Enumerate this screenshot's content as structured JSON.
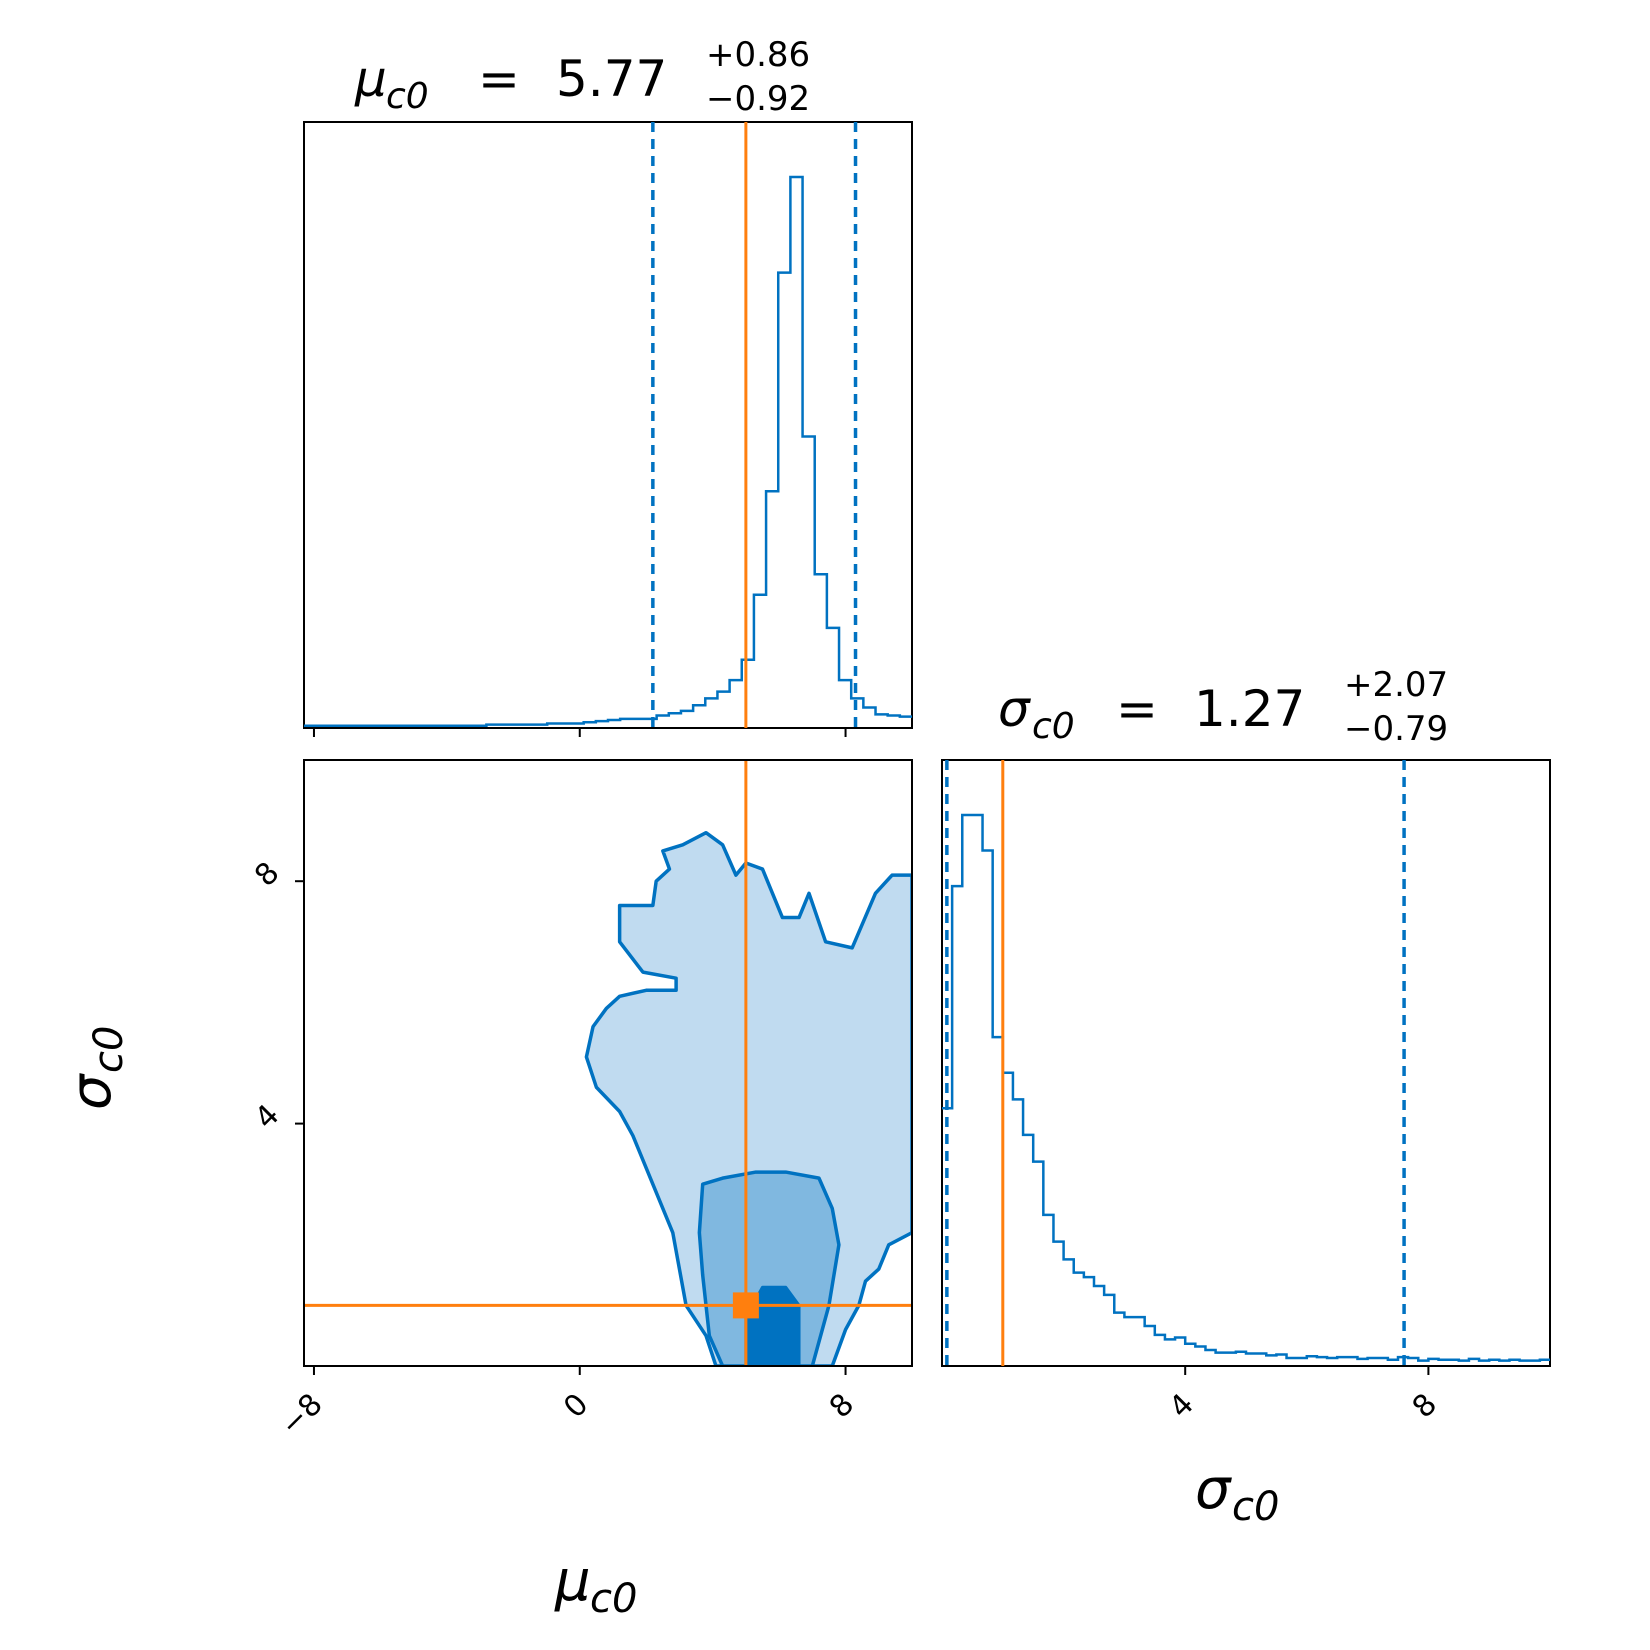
{
  "chart_data": {
    "type": "corner",
    "colors": {
      "posterior": "#0072c1",
      "truth": "#ff7f0e",
      "contour_fill_outer": "#c0dbf0",
      "contour_fill_mid": "#80b8e0",
      "contour_fill_inner": "#0072c1",
      "axes": "#000000"
    },
    "parameters": [
      {
        "symbol": "μ",
        "subscript": "c0",
        "median": "5.77",
        "upper": "+0.86",
        "lower": "−0.92",
        "xlim": [
          -8.3,
          10
        ],
        "ticks": [
          -8,
          0,
          8
        ],
        "tick_labels": [
          "−8",
          "0",
          "8"
        ],
        "truth": 5.0,
        "quantiles": [
          2.2,
          8.3
        ],
        "hist_edges": [
          -8.3,
          10
        ],
        "hist_counts": [
          0.2,
          0.2,
          0.2,
          0.2,
          0.2,
          0.2,
          0.2,
          0.2,
          0.2,
          0.2,
          0.2,
          0.2,
          0.2,
          0.2,
          0.2,
          0.3,
          0.3,
          0.3,
          0.3,
          0.3,
          0.4,
          0.4,
          0.4,
          0.5,
          0.6,
          0.7,
          0.8,
          0.8,
          0.8,
          1.1,
          1.3,
          1.5,
          2.0,
          2.6,
          3.2,
          4.2,
          6.0,
          11.7,
          20.8,
          40.0,
          48.4,
          25.6,
          13.5,
          8.8,
          4.2,
          2.6,
          1.8,
          1.2,
          1.1,
          1.0
        ]
      },
      {
        "symbol": "σ",
        "subscript": "c0",
        "median": "1.27",
        "upper": "+2.07",
        "lower": "−0.79",
        "xlim": [
          0,
          10
        ],
        "ticks": [
          4,
          8
        ],
        "tick_labels": [
          "4",
          "8"
        ],
        "truth": 1.0,
        "quantiles": [
          0.08,
          7.6
        ],
        "hist_edges": [
          0,
          10
        ],
        "hist_counts": [
          2.9,
          5.4,
          6.2,
          6.2,
          5.8,
          3.7,
          3.3,
          3.0,
          2.6,
          2.3,
          1.7,
          1.4,
          1.2,
          1.05,
          1.0,
          0.9,
          0.8,
          0.6,
          0.55,
          0.55,
          0.45,
          0.35,
          0.3,
          0.32,
          0.25,
          0.22,
          0.18,
          0.15,
          0.15,
          0.16,
          0.14,
          0.14,
          0.12,
          0.13,
          0.09,
          0.09,
          0.11,
          0.1,
          0.09,
          0.1,
          0.1,
          0.08,
          0.09,
          0.09,
          0.07,
          0.1,
          0.09,
          0.06,
          0.08,
          0.07,
          0.07,
          0.06,
          0.08,
          0.06,
          0.07,
          0.06,
          0.07,
          0.06,
          0.06,
          0.07
        ]
      }
    ],
    "joint": {
      "x_param": "μ_c0",
      "y_param": "σ_c0",
      "xlim": [
        -8.3,
        10
      ],
      "ylim": [
        0,
        10
      ],
      "truth_point": [
        5.0,
        1.0
      ],
      "contour_levels_outer": [
        [
          [
            10.0,
            2.2
          ],
          [
            9.3,
            2.0
          ],
          [
            9.0,
            1.6
          ],
          [
            8.6,
            1.4
          ],
          [
            8.4,
            1.0
          ],
          [
            8.0,
            0.6
          ],
          [
            7.6,
            0.0
          ],
          [
            4.1,
            0.0
          ],
          [
            3.8,
            0.5
          ],
          [
            3.2,
            1.0
          ],
          [
            2.8,
            2.2
          ],
          [
            2.2,
            3.0
          ],
          [
            1.6,
            3.8
          ],
          [
            1.2,
            4.2
          ],
          [
            0.5,
            4.6
          ],
          [
            0.2,
            5.1
          ],
          [
            0.4,
            5.6
          ],
          [
            0.8,
            5.9
          ],
          [
            1.2,
            6.1
          ],
          [
            2.0,
            6.2
          ],
          [
            2.9,
            6.2
          ],
          [
            2.9,
            6.4
          ],
          [
            1.9,
            6.5
          ],
          [
            1.2,
            7.0
          ],
          [
            1.2,
            7.6
          ],
          [
            2.2,
            7.6
          ],
          [
            2.3,
            8.0
          ],
          [
            2.7,
            8.2
          ],
          [
            2.5,
            8.5
          ],
          [
            3.1,
            8.6
          ],
          [
            3.8,
            8.8
          ],
          [
            4.3,
            8.6
          ],
          [
            4.7,
            8.1
          ],
          [
            5.0,
            8.3
          ],
          [
            5.5,
            8.2
          ],
          [
            5.8,
            7.8
          ],
          [
            6.1,
            7.4
          ],
          [
            6.6,
            7.4
          ],
          [
            6.9,
            7.8
          ],
          [
            7.4,
            7.0
          ],
          [
            8.2,
            6.9
          ],
          [
            8.9,
            7.8
          ],
          [
            9.4,
            8.1
          ],
          [
            10.0,
            8.1
          ]
        ]
      ],
      "contour_levels_mid": [
        [
          [
            4.3,
            0.0
          ],
          [
            3.9,
            0.5
          ],
          [
            3.7,
            1.5
          ],
          [
            3.6,
            2.2
          ],
          [
            3.7,
            3.0
          ],
          [
            4.3,
            3.1
          ],
          [
            5.3,
            3.2
          ],
          [
            6.2,
            3.2
          ],
          [
            7.2,
            3.1
          ],
          [
            7.6,
            2.6
          ],
          [
            7.8,
            2.0
          ],
          [
            7.5,
            1.0
          ],
          [
            7.2,
            0.4
          ],
          [
            7.0,
            0.0
          ]
        ]
      ],
      "contour_levels_inner": [
        [
          [
            5.0,
            0.0
          ],
          [
            5.0,
            0.8
          ],
          [
            5.5,
            1.3
          ],
          [
            6.2,
            1.3
          ],
          [
            6.6,
            1.0
          ],
          [
            6.6,
            0.0
          ]
        ]
      ]
    },
    "axis_labels": {
      "x_bottom_left": {
        "symbol": "μ",
        "subscript": "c0"
      },
      "x_bottom_right": {
        "symbol": "σ",
        "subscript": "c0"
      },
      "y_left": {
        "symbol": "σ",
        "subscript": "c0"
      }
    }
  }
}
